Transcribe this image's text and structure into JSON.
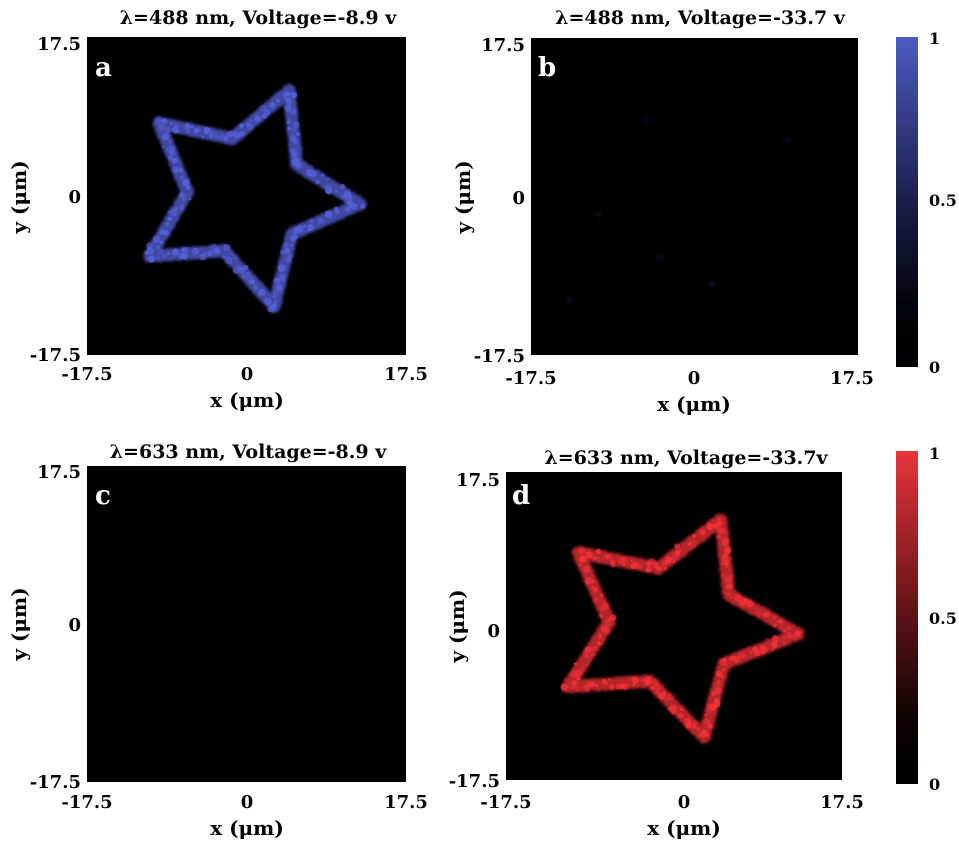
{
  "chart_data": [
    {
      "type": "heatmap",
      "panel_label": "a",
      "title": "λ=488 nm, Voltage=-8.9 v",
      "xlabel": "x (μm)",
      "ylabel": "y (μm)",
      "xlim": [
        -17.5,
        17.5
      ],
      "ylim": [
        -17.5,
        17.5
      ],
      "xticks": [
        "-17.5",
        "0",
        "17.5"
      ],
      "yticks": [
        "17.5",
        "0",
        "-17.5"
      ],
      "colormap": "blue",
      "feature": "five-pointed star outline",
      "star_center": [
        0,
        0
      ],
      "star_outer_radius": 12.5,
      "star_inner_ratio": 0.52,
      "peak_intensity": 1
    },
    {
      "type": "heatmap",
      "panel_label": "b",
      "title": "λ=488 nm, Voltage=-33.7 v",
      "xlabel": "x (μm)",
      "ylabel": "y (μm)",
      "xlim": [
        -17.5,
        17.5
      ],
      "ylim": [
        -17.5,
        17.5
      ],
      "xticks": [
        "-17.5",
        "0",
        "17.5"
      ],
      "yticks": [
        "17.5",
        "0",
        "-17.5"
      ],
      "colormap": "blue",
      "feature": "none (near zero intensity)",
      "peak_intensity": 0.05
    },
    {
      "type": "heatmap",
      "panel_label": "c",
      "title": "λ=633 nm, Voltage=-8.9 v",
      "xlabel": "x (μm)",
      "ylabel": "y (μm)",
      "xlim": [
        -17.5,
        17.5
      ],
      "ylim": [
        -17.5,
        17.5
      ],
      "xticks": [
        "-17.5",
        "0",
        "17.5"
      ],
      "yticks": [
        "17.5",
        "0",
        "-17.5"
      ],
      "colormap": "red",
      "feature": "none (near zero intensity)",
      "peak_intensity": 0.02
    },
    {
      "type": "heatmap",
      "panel_label": "d",
      "title": "λ=633 nm, Voltage=-33.7v",
      "xlabel": "x (μm)",
      "ylabel": "y (μm)",
      "xlim": [
        -17.5,
        17.5
      ],
      "ylim": [
        -17.5,
        17.5
      ],
      "xticks": [
        "-17.5",
        "0",
        "17.5"
      ],
      "yticks": [
        "17.5",
        "0",
        "-17.5"
      ],
      "colormap": "red",
      "feature": "five-pointed star outline",
      "star_center": [
        0,
        0
      ],
      "star_outer_radius": 13,
      "star_inner_ratio": 0.52,
      "peak_intensity": 1
    }
  ],
  "colorbars": [
    {
      "colormap": "blue",
      "ticks": [
        "1",
        "0.5",
        "0"
      ],
      "color_max": "#4d5cc0",
      "color_min": "#000000"
    },
    {
      "colormap": "red",
      "ticks": [
        "1",
        "0.5",
        "0"
      ],
      "color_max": "#e8343a",
      "color_min": "#000000"
    }
  ],
  "colors": {
    "blue_star": "#5660d8",
    "red_star": "#f23037",
    "background": "#000000"
  }
}
